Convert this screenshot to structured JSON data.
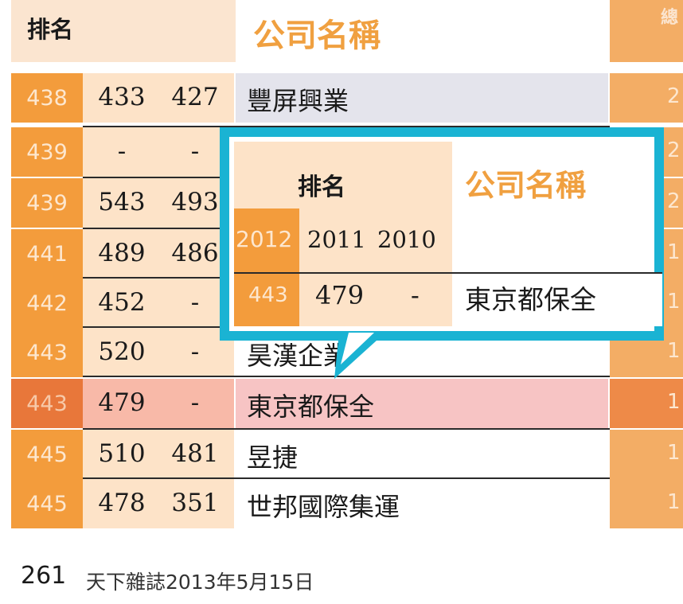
{
  "header": {
    "rank_label": "排名",
    "company_label": "公司名稱",
    "right_label": "總"
  },
  "rows": [
    {
      "r2012": "438",
      "r2011": "433",
      "r2010": "427",
      "name": "豐屏興業",
      "tail": "2"
    },
    {
      "r2012": "439",
      "r2011": "-",
      "r2010": "-",
      "name": "",
      "tail": "2"
    },
    {
      "r2012": "439",
      "r2011": "543",
      "r2010": "493",
      "name": "",
      "tail": "2"
    },
    {
      "r2012": "441",
      "r2011": "489",
      "r2010": "486",
      "name": "",
      "tail": "1"
    },
    {
      "r2012": "442",
      "r2011": "452",
      "r2010": "-",
      "name": "",
      "tail": "1"
    },
    {
      "r2012": "443",
      "r2011": "520",
      "r2010": "-",
      "name": "昊漢企業",
      "tail": "1"
    },
    {
      "r2012": "443",
      "r2011": "479",
      "r2010": "-",
      "name": "東京都保全",
      "tail": "1"
    },
    {
      "r2012": "445",
      "r2011": "510",
      "r2010": "481",
      "name": "昱捷",
      "tail": "1"
    },
    {
      "r2012": "445",
      "r2011": "478",
      "r2010": "351",
      "name": "世邦國際集運",
      "tail": "1"
    }
  ],
  "callout": {
    "rank_label": "排名",
    "company_label": "公司名稱",
    "year_2012": "2012",
    "year_2011": "2011",
    "year_2010": "2010",
    "rank": "443",
    "rank_2011": "479",
    "rank_2010": "-",
    "company": "東京都保全"
  },
  "footer": {
    "page": "261",
    "source": "天下雜誌2013年5月15日"
  },
  "colors": {
    "accent_orange": "#f39c3c",
    "highlight_pink": "#f7c4c4",
    "callout_border": "#1ab3d3"
  }
}
